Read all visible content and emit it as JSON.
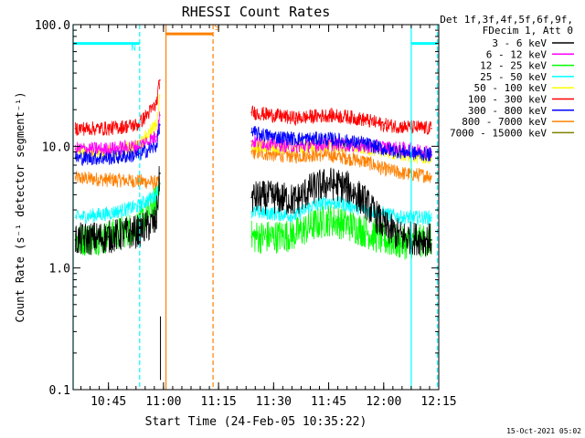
{
  "chart_data": {
    "type": "line",
    "title": "RHESSI Count Rates",
    "xlabel": "Start Time (24-Feb-05 10:35:22)",
    "ylabel": "Count Rate (s⁻¹ detector segment⁻¹)",
    "yscale": "log",
    "ylim": [
      0.1,
      100.0
    ],
    "xlim": [
      "10:35:22",
      "12:15:00"
    ],
    "x_ticks": [
      "10:45",
      "11:00",
      "11:15",
      "11:30",
      "11:45",
      "12:00",
      "12:15"
    ],
    "y_ticks": [
      "0.1",
      "1.0",
      "10.0",
      "100.0"
    ],
    "grid": false,
    "legend_position": "right",
    "legend_header": [
      "Det 1f,3f,4f,5f,6f,9f,",
      "FDecim 1, Att 0"
    ],
    "footer_date": "15-Oct-2021 05:02",
    "gap": [
      "10:59:30",
      "11:23:00"
    ],
    "series": [
      {
        "name": "3 - 6 keV",
        "color": "#000000",
        "x": [
          "10:36",
          "10:45",
          "10:53",
          "10:58",
          "10:59",
          "11:24",
          "11:30",
          "11:36",
          "11:40",
          "11:45",
          "11:50",
          "11:55",
          "12:00",
          "12:05",
          "12:13"
        ],
        "y": [
          1.7,
          1.8,
          2.0,
          2.4,
          6.0,
          3.8,
          3.8,
          3.6,
          4.4,
          5.0,
          4.6,
          3.5,
          2.2,
          1.8,
          1.7
        ]
      },
      {
        "name": "6 - 12 keV",
        "color": "#ff00ff",
        "x": [
          "10:36",
          "10:45",
          "10:53",
          "10:58",
          "10:59",
          "11:24",
          "11:30",
          "11:36",
          "11:40",
          "11:45",
          "11:50",
          "11:55",
          "12:00",
          "12:05",
          "12:13"
        ],
        "y": [
          9.5,
          9.5,
          10.0,
          12.0,
          18.0,
          11.0,
          10.5,
          10.0,
          10.2,
          10.5,
          10.3,
          10.0,
          9.8,
          9.5,
          9.0
        ]
      },
      {
        "name": "12 - 25 keV",
        "color": "#00ff00",
        "x": [
          "10:36",
          "10:45",
          "10:53",
          "10:58",
          "10:59",
          "11:24",
          "11:30",
          "11:36",
          "11:40",
          "11:45",
          "11:50",
          "11:55",
          "12:00",
          "12:05",
          "12:13"
        ],
        "y": [
          1.7,
          1.8,
          2.2,
          3.5,
          6.0,
          1.8,
          1.8,
          1.9,
          2.2,
          2.5,
          2.3,
          2.0,
          1.7,
          1.6,
          1.7
        ]
      },
      {
        "name": "25 - 50 keV",
        "color": "#00ffff",
        "x": [
          "10:36",
          "10:45",
          "10:53",
          "10:58",
          "10:59",
          "11:24",
          "11:30",
          "11:36",
          "11:40",
          "11:45",
          "11:50",
          "11:55",
          "12:00",
          "12:05",
          "12:13"
        ],
        "y": [
          2.6,
          2.8,
          3.2,
          4.0,
          5.0,
          2.9,
          2.8,
          2.7,
          3.2,
          3.5,
          3.3,
          3.0,
          2.8,
          2.6,
          2.6
        ]
      },
      {
        "name": "50 - 100 keV",
        "color": "#ffff00",
        "x": [
          "10:36",
          "10:45",
          "10:53",
          "10:58",
          "10:59",
          "11:24",
          "11:30",
          "11:36",
          "11:40",
          "11:45",
          "11:50",
          "11:55",
          "12:00",
          "12:05",
          "12:13"
        ],
        "y": [
          9.0,
          9.0,
          10.0,
          15.0,
          26.0,
          10.0,
          10.0,
          9.8,
          10.0,
          10.3,
          10.0,
          9.7,
          9.2,
          8.5,
          8.0
        ]
      },
      {
        "name": "100 - 300 keV",
        "color": "#ff0000",
        "x": [
          "10:36",
          "10:45",
          "10:53",
          "10:58",
          "10:59",
          "11:24",
          "11:30",
          "11:36",
          "11:40",
          "11:45",
          "11:50",
          "11:55",
          "12:00",
          "12:05",
          "12:13"
        ],
        "y": [
          14.0,
          14.0,
          15.0,
          22.0,
          35.0,
          19.0,
          18.0,
          17.0,
          17.5,
          18.0,
          17.5,
          16.5,
          15.0,
          14.5,
          14.0
        ]
      },
      {
        "name": "300 - 800 keV",
        "color": "#0000ff",
        "x": [
          "10:36",
          "10:45",
          "10:53",
          "10:58",
          "10:59",
          "11:24",
          "11:30",
          "11:36",
          "11:40",
          "11:45",
          "11:50",
          "11:55",
          "12:00",
          "12:05",
          "12:13"
        ],
        "y": [
          8.0,
          8.0,
          8.5,
          10.0,
          15.0,
          13.0,
          12.0,
          11.5,
          11.5,
          11.5,
          11.0,
          10.5,
          9.5,
          9.0,
          8.5
        ]
      },
      {
        "name": "800 - 7000 keV",
        "color": "#ff8000",
        "x": [
          "10:36",
          "10:45",
          "10:53",
          "10:58",
          "10:59",
          "11:24",
          "11:30",
          "11:36",
          "11:40",
          "11:45",
          "11:50",
          "11:55",
          "12:00",
          "12:05",
          "12:13"
        ],
        "y": [
          5.5,
          5.3,
          5.2,
          5.0,
          4.9,
          9.0,
          8.5,
          8.3,
          8.5,
          8.5,
          8.0,
          7.5,
          6.5,
          6.0,
          5.7
        ]
      },
      {
        "name": "7000 - 15000 keV",
        "color": "#808000",
        "x": [],
        "y": []
      }
    ],
    "markers": [
      {
        "type": "bar",
        "color": "#00ffff",
        "x0": "10:35:22",
        "x1": "10:53:30",
        "label": "N",
        "level": 70
      },
      {
        "type": "bar",
        "color": "#00ffff",
        "x0": "12:07:30",
        "x1": "12:14:40",
        "level": 70
      },
      {
        "type": "bar",
        "color": "#ff8000",
        "x0": "11:00:40",
        "x1": "11:13:30",
        "label": "S",
        "level": 84
      },
      {
        "type": "vline",
        "style": "solid",
        "color": "#00ffff",
        "x": "10:35:22"
      },
      {
        "type": "vline",
        "style": "dashed",
        "color": "#00ffff",
        "x": "10:53:30"
      },
      {
        "type": "vline",
        "style": "solid",
        "color": "#00ffff",
        "x": "12:07:30"
      },
      {
        "type": "vline",
        "style": "dashed",
        "color": "#00ffff",
        "x": "12:14:40"
      },
      {
        "type": "vline",
        "style": "solid",
        "color": "#ff8000",
        "x": "11:00:40"
      },
      {
        "type": "vline",
        "style": "dashed",
        "color": "#ff8000",
        "x": "11:13:30"
      }
    ]
  }
}
